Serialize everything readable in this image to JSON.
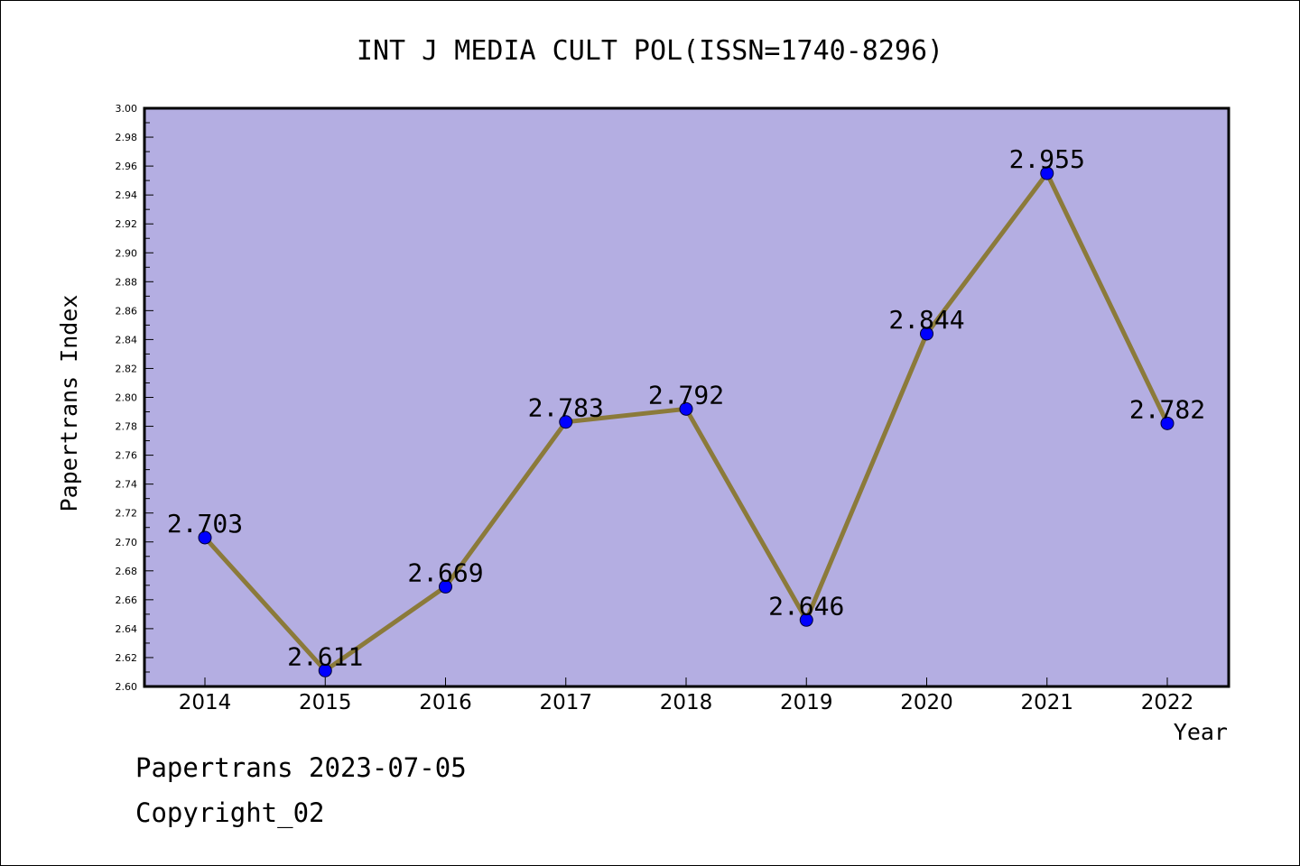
{
  "chart_data": {
    "type": "line",
    "title": "INT J MEDIA CULT POL(ISSN=1740-8296)",
    "xlabel": "Year",
    "ylabel": "Papertrans Index",
    "categories": [
      "2014",
      "2015",
      "2016",
      "2017",
      "2018",
      "2019",
      "2020",
      "2021",
      "2022"
    ],
    "values": [
      2.703,
      2.611,
      2.669,
      2.783,
      2.792,
      2.646,
      2.844,
      2.955,
      2.782
    ],
    "data_labels": [
      "2.703",
      "2.611",
      "2.669",
      "2.783",
      "2.792",
      "2.646",
      "2.844",
      "2.955",
      "2.782"
    ],
    "ylim": [
      2.6,
      3.0
    ],
    "yticks": [
      "2.60",
      "2.62",
      "2.64",
      "2.66",
      "2.68",
      "2.70",
      "2.72",
      "2.74",
      "2.76",
      "2.78",
      "2.80",
      "2.82",
      "2.84",
      "2.86",
      "2.88",
      "2.90",
      "2.92",
      "2.94",
      "2.96",
      "2.98",
      "3.00"
    ],
    "grid": false,
    "colors": {
      "plot_background": "#b4aee2",
      "line": "#8b7a3a",
      "marker": "#0000ff"
    }
  },
  "footer": {
    "line1": "Papertrans 2023-07-05",
    "line2": "Copyright_02"
  }
}
